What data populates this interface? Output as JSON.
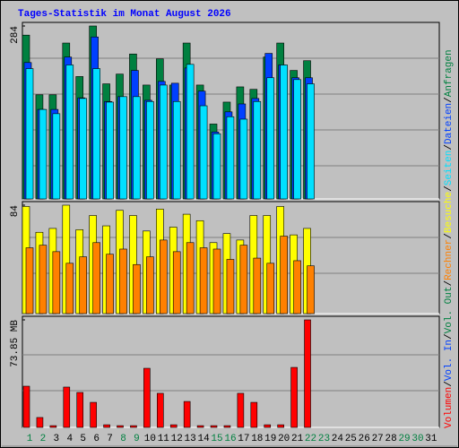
{
  "chart_data": {
    "type": "bar",
    "title": "Tages-Statistik im Monat August 2026",
    "title_color": "#0000ff",
    "categories": [
      "1",
      "2",
      "3",
      "4",
      "5",
      "6",
      "7",
      "8",
      "9",
      "10",
      "11",
      "12",
      "13",
      "14",
      "15",
      "16",
      "17",
      "18",
      "19",
      "20",
      "21",
      "22",
      "23",
      "24",
      "25",
      "26",
      "27",
      "28",
      "29",
      "30",
      "31"
    ],
    "highlight_categories": [
      0,
      1,
      7,
      8,
      14,
      15,
      21,
      22,
      28,
      29
    ],
    "highlight_color": "#008040",
    "legend_separator": "/",
    "panels": [
      {
        "ylim": [
          0,
          284
        ],
        "yticks": [
          284
        ],
        "series": [
          {
            "name": "Anfragen",
            "color": "#008040",
            "values": [
              269,
              171,
              171,
              256,
              201,
              284,
              189,
              205,
              238,
              187,
              230,
              187,
              256,
              187,
              123,
              159,
              184,
              180,
              233,
              256,
              211,
              227,
              null,
              null,
              null,
              null,
              null,
              null,
              null,
              null,
              null
            ]
          },
          {
            "name": "Dateien",
            "color": "#0040ff",
            "values": [
              224,
              147,
              147,
              233,
              166,
              266,
              160,
              168,
              211,
              162,
              193,
              190,
              215,
              177,
              110,
              143,
              156,
              165,
              239,
              220,
              199,
              199,
              null,
              null,
              null,
              null,
              null,
              null,
              null,
              null,
              null
            ]
          },
          {
            "name": "Seiten",
            "color": "#00e0ff",
            "values": [
              214,
              147,
              140,
              220,
              165,
              214,
              159,
              168,
              168,
              160,
              187,
              160,
              221,
              153,
              107,
              135,
              131,
              160,
              199,
              220,
              196,
              189,
              null,
              null,
              null,
              null,
              null,
              null,
              null,
              null,
              null
            ]
          }
        ]
      },
      {
        "ylim": [
          0,
          84
        ],
        "yticks": [
          84
        ],
        "series": [
          {
            "name": "Besuche",
            "color": "#ffff00",
            "values": [
              83,
              63,
              66,
              84,
              65,
              76,
              68,
              80,
              76,
              64,
              81,
              67,
              77,
              72,
              55,
              62,
              57,
              76,
              76,
              83,
              61,
              66,
              null,
              null,
              null,
              null,
              null,
              null,
              null,
              null,
              null
            ]
          },
          {
            "name": "Rechner",
            "color": "#ff8000",
            "values": [
              51,
              53,
              48,
              39,
              44,
              55,
              46,
              50,
              38,
              44,
              57,
              48,
              55,
              51,
              50,
              42,
              53,
              43,
              39,
              60,
              41,
              37,
              null,
              null,
              null,
              null,
              null,
              null,
              null,
              null,
              null
            ]
          }
        ]
      },
      {
        "ylim": [
          0,
          73.85
        ],
        "yticks": [
          {
            "value": 73.85,
            "label": "73.85 MB"
          }
        ],
        "series": [
          {
            "name": "Vol. Out",
            "color": "#008040",
            "values": [
              null,
              null,
              null,
              null,
              null,
              null,
              null,
              null,
              null,
              null,
              null,
              null,
              null,
              null,
              null,
              null,
              null,
              null,
              null,
              null,
              null,
              null,
              null,
              null,
              null,
              null,
              null,
              null,
              null,
              null,
              null
            ]
          },
          {
            "name": "Vol. In",
            "color": "#0040ff",
            "values": [
              null,
              null,
              null,
              null,
              null,
              null,
              null,
              null,
              null,
              null,
              null,
              null,
              null,
              null,
              null,
              null,
              null,
              null,
              null,
              null,
              null,
              null,
              null,
              null,
              null,
              null,
              null,
              null,
              null,
              null,
              null
            ]
          },
          {
            "name": "Volumen",
            "color": "#ff0000",
            "values": [
              28.3,
              6.8,
              1.2,
              27.7,
              24.0,
              17.2,
              1.8,
              1.2,
              1.2,
              40.6,
              23.4,
              1.8,
              17.8,
              1.2,
              1.2,
              1.2,
              23.4,
              17.2,
              1.8,
              1.8,
              41.2,
              73.85,
              null,
              null,
              null,
              null,
              null,
              null,
              null,
              null,
              null
            ]
          }
        ]
      }
    ]
  }
}
